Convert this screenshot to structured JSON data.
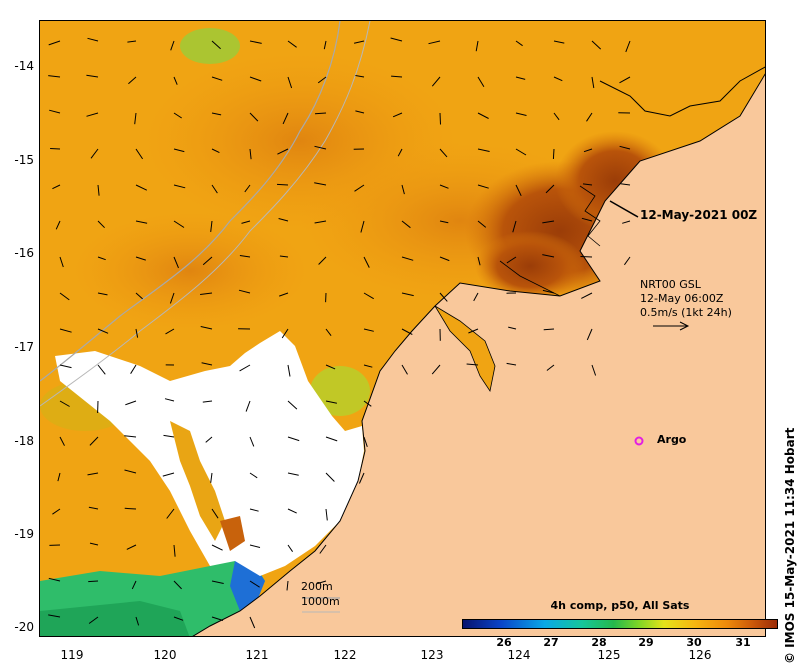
{
  "map": {
    "latitude_labels": [
      "-14",
      "-15",
      "-16",
      "-17",
      "-18",
      "-19",
      "-20"
    ],
    "longitude_labels": [
      "119",
      "120",
      "121",
      "122",
      "123",
      "124",
      "125",
      "126"
    ],
    "date_label": "12-May-2021 00Z",
    "vector_legend": {
      "line1": "NRT00 GSL",
      "line2": "12-May 06:00Z",
      "line3": "0.5m/s (1kt 24h)"
    },
    "argo_label": "Argo",
    "depth_labels": [
      "200m",
      "1000m"
    ],
    "credit": "IMOS 15-May-2021 11:34 Hobart",
    "copyright_symbol": "©",
    "colorbar": {
      "title": "4h comp, p50, All Sats",
      "ticks": [
        "26",
        "27",
        "28",
        "29",
        "30",
        "31"
      ]
    },
    "colors": {
      "land": "#f9c89b",
      "warm_sst": "#f0a413",
      "hot_sst": "#a8470a",
      "cloud": "#ffffff",
      "argo": "#e31ee3"
    }
  }
}
